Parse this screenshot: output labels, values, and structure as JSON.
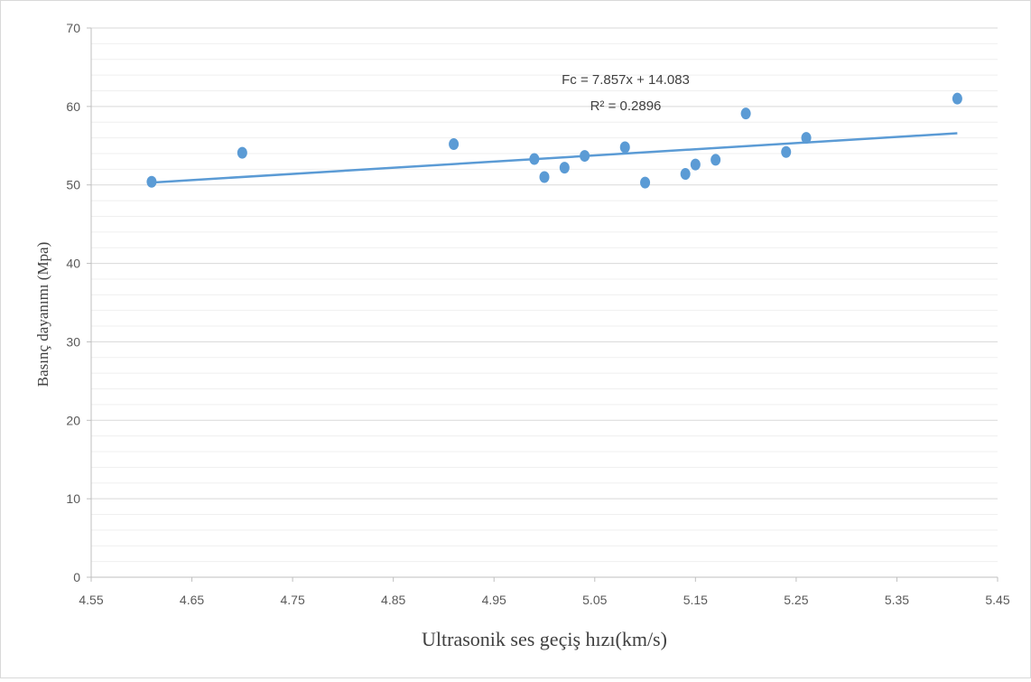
{
  "chart_data": {
    "type": "scatter",
    "xlabel": "Ultrasonik  ses geçiş hızı(km/s)",
    "ylabel": "Basınç dayanımı  (Mpa)",
    "xlim": [
      4.55,
      5.45
    ],
    "ylim": [
      0,
      70
    ],
    "x_ticks": [
      "4.55",
      "4.65",
      "4.75",
      "4.85",
      "4.95",
      "5.05",
      "5.15",
      "5.25",
      "5.35",
      "5.45"
    ],
    "y_ticks": [
      "0",
      "10",
      "20",
      "30",
      "40",
      "50",
      "60",
      "70"
    ],
    "y_major_step": 10,
    "y_minor_step": 2,
    "grid": true,
    "marker_color": "#5b9bd5",
    "trendline_color": "#5b9bd5",
    "points": [
      {
        "x": 4.61,
        "y": 50.4
      },
      {
        "x": 4.7,
        "y": 54.1
      },
      {
        "x": 4.91,
        "y": 55.2
      },
      {
        "x": 4.99,
        "y": 53.3
      },
      {
        "x": 5.0,
        "y": 51.0
      },
      {
        "x": 5.02,
        "y": 52.2
      },
      {
        "x": 5.04,
        "y": 53.7
      },
      {
        "x": 5.08,
        "y": 54.8
      },
      {
        "x": 5.1,
        "y": 50.3
      },
      {
        "x": 5.14,
        "y": 51.4
      },
      {
        "x": 5.15,
        "y": 52.6
      },
      {
        "x": 5.17,
        "y": 53.2
      },
      {
        "x": 5.2,
        "y": 59.1
      },
      {
        "x": 5.24,
        "y": 54.2
      },
      {
        "x": 5.26,
        "y": 56.0
      },
      {
        "x": 5.41,
        "y": 61.0
      }
    ],
    "trendline": {
      "slope": 7.857,
      "intercept": 14.083,
      "x_range": [
        4.61,
        5.41
      ],
      "equation": "Fc = 7.857x + 14.083",
      "r_squared": "R² = 0.2896"
    }
  }
}
